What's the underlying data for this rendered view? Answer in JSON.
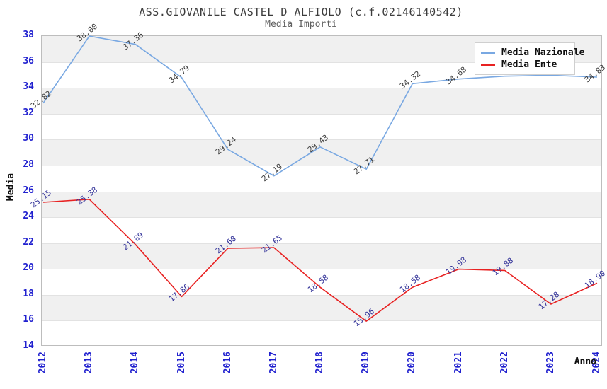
{
  "title": "ASS.GIOVANILE CASTEL D ALFIOLO (c.f.02146140542)",
  "subtitle": "Media Importi",
  "colors": {
    "tick_label_blue": "#2121cf",
    "band_gray": "#f0f0f0",
    "grid_line": "#e2e2e2",
    "plot_border": "#bdbdbd",
    "title_gray": "#3c3c3c"
  },
  "chart_data": {
    "type": "line",
    "x": [
      2012,
      2013,
      2014,
      2015,
      2016,
      2017,
      2018,
      2019,
      2020,
      2021,
      2022,
      2023,
      2024
    ],
    "xlabel": "Anno",
    "ylabel": "Media",
    "ylim": [
      14,
      38
    ],
    "ytick_step": 2,
    "grid": "alternating horizontal gray/white bands, 2 units per band",
    "legend_position": "top-right",
    "series": [
      {
        "name": "Media Nazionale",
        "color": "#79a8e2",
        "label_color": "#3c3c3c",
        "values": [
          32.82,
          38.0,
          37.36,
          34.79,
          29.24,
          27.19,
          29.43,
          27.71,
          34.32,
          34.68,
          34.9,
          34.97,
          34.83
        ],
        "labels": [
          "32.82",
          "38.00",
          "37.36",
          "34.79",
          "29.24",
          "27.19",
          "29.43",
          "27.71",
          "34.32",
          "34.68",
          "",
          "",
          "34.83"
        ]
      },
      {
        "name": "Media Ente",
        "color": "#e82222",
        "label_color": "#333399",
        "values": [
          25.15,
          25.38,
          21.89,
          17.86,
          21.6,
          21.65,
          18.58,
          15.96,
          18.58,
          19.98,
          19.88,
          17.28,
          18.9
        ],
        "labels": [
          "25.15",
          "25.38",
          "21.89",
          "17.86",
          "21.60",
          "21.65",
          "18.58",
          "15.96",
          "18.58",
          "19.98",
          "19.88",
          "17.28",
          "18.90"
        ]
      }
    ]
  }
}
